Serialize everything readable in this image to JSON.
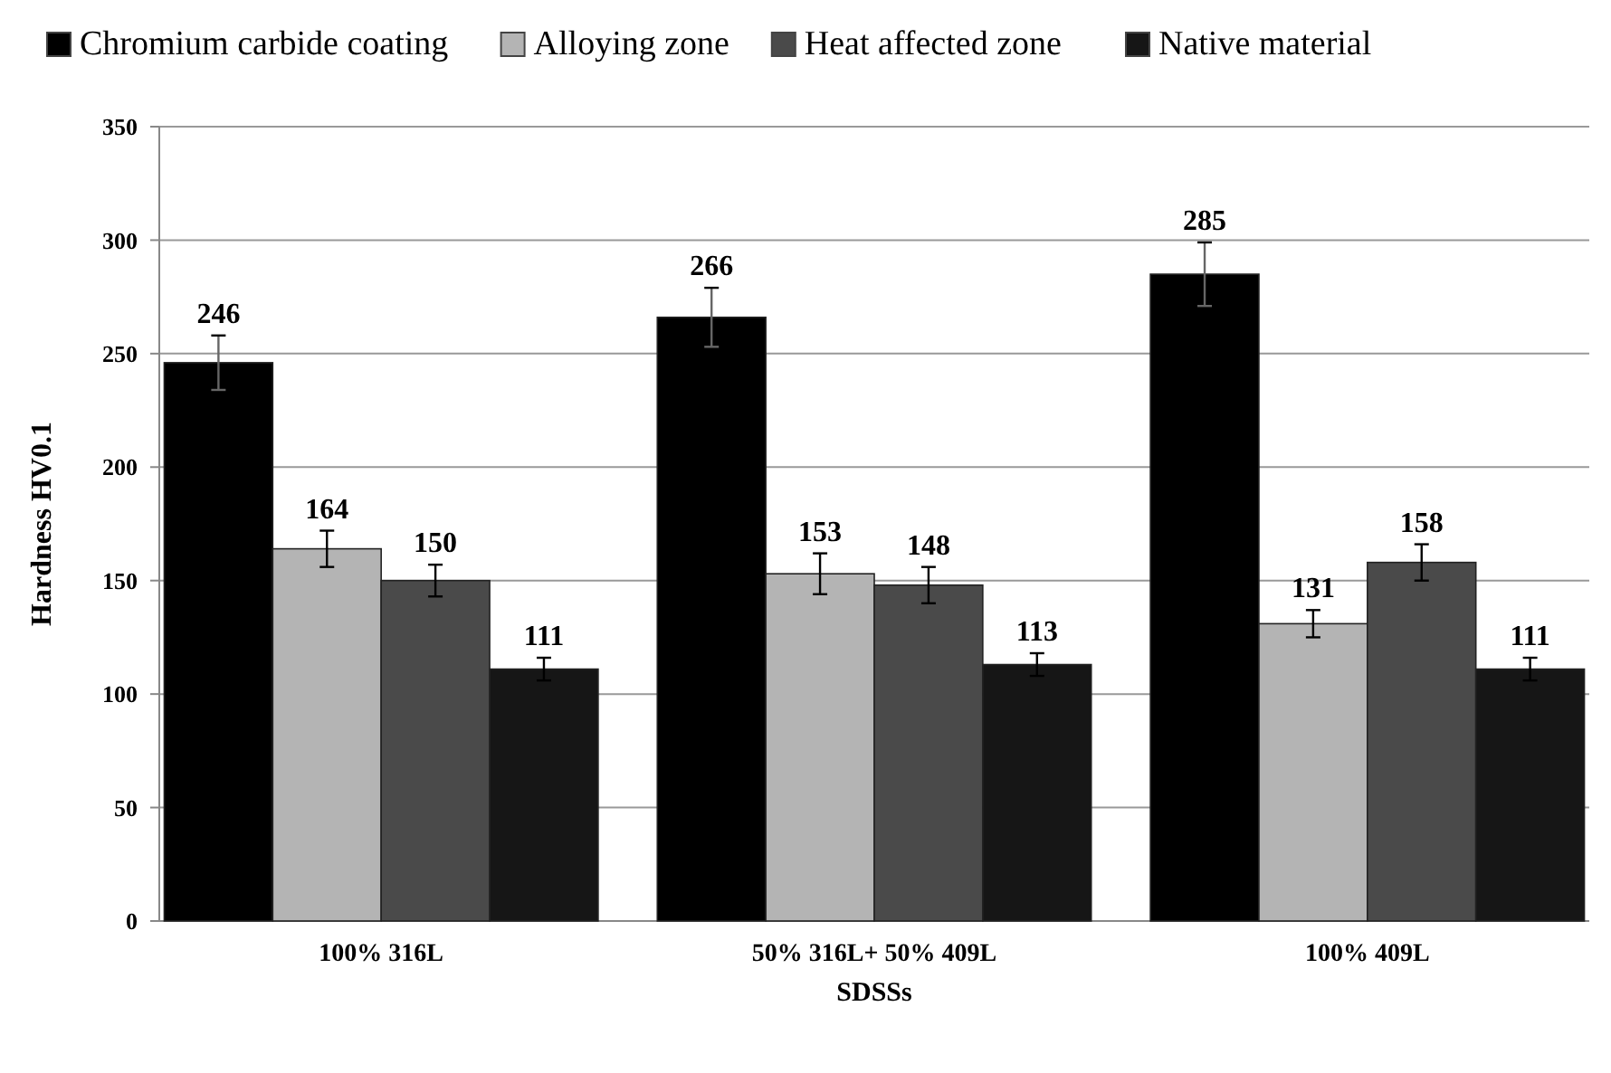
{
  "chart_data": {
    "type": "bar",
    "xlabel": "SDSSs",
    "ylabel": "Hardness HV0.1",
    "categories": [
      "100% 316L",
      "50% 316L+ 50% 409L",
      "100% 409L"
    ],
    "series": [
      {
        "name": "Chromium carbide coating",
        "color": "#000000",
        "values": [
          246,
          266,
          285
        ],
        "errors": [
          12,
          13,
          14
        ]
      },
      {
        "name": "Alloying zone",
        "color": "#b4b4b4",
        "values": [
          164,
          153,
          131
        ],
        "errors": [
          8,
          9,
          6
        ]
      },
      {
        "name": "Heat affected zone",
        "color": "#4a4a4a",
        "values": [
          150,
          148,
          158
        ],
        "errors": [
          7,
          8,
          8
        ]
      },
      {
        "name": "Native material",
        "color": "#161616",
        "values": [
          111,
          113,
          111
        ],
        "errors": [
          5,
          5,
          5
        ]
      }
    ],
    "ylim": [
      0,
      350
    ],
    "yticks": [
      0,
      50,
      100,
      150,
      200,
      250,
      300,
      350
    ],
    "grid": "y",
    "legend": "top",
    "data_labels": true
  }
}
